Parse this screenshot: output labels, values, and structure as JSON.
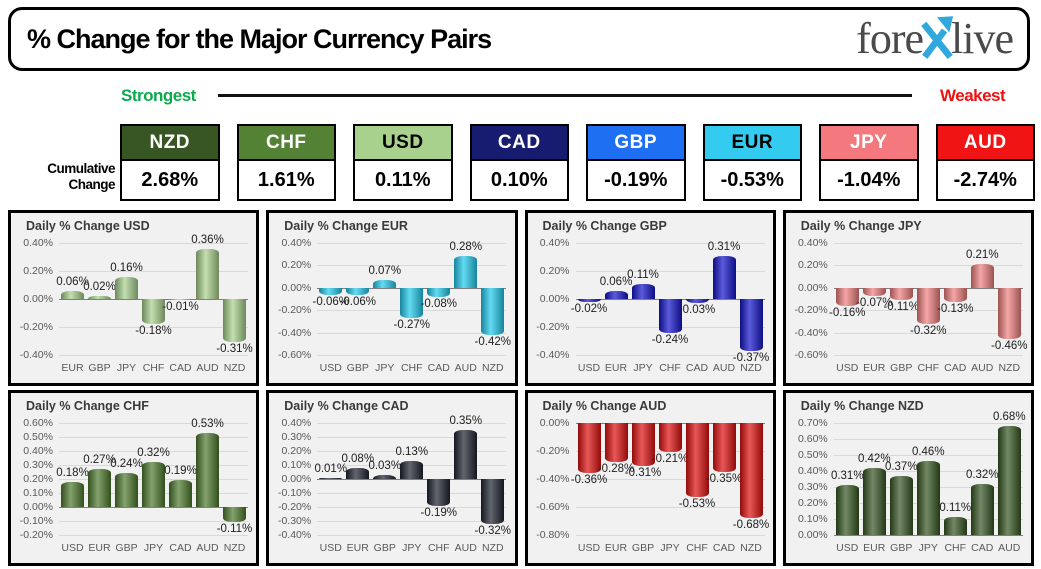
{
  "header": {
    "title": "% Change for the Major Currency Pairs",
    "logo": {
      "part1": "fore",
      "part2": "live",
      "x_color": "#2FA8DD",
      "text_color": "#4a4a4a"
    }
  },
  "scale": {
    "strongest_label": "Strongest",
    "weakest_label": "Weakest",
    "strongest_color": "#0CA94F",
    "weakest_color": "#EE1111"
  },
  "cumulative": {
    "label_line1": "Cumulative",
    "label_line2": "Change",
    "ranking": [
      {
        "currency": "NZD",
        "value": "2.68%",
        "bg": "#375623",
        "fg": "#FFFFFF"
      },
      {
        "currency": "CHF",
        "value": "1.61%",
        "bg": "#548235",
        "fg": "#FFFFFF"
      },
      {
        "currency": "USD",
        "value": "0.11%",
        "bg": "#A9D18E",
        "fg": "#000000"
      },
      {
        "currency": "CAD",
        "value": "0.10%",
        "bg": "#181C70",
        "fg": "#FFFFFF"
      },
      {
        "currency": "GBP",
        "value": "-0.19%",
        "bg": "#1F6FF2",
        "fg": "#FFFFFF"
      },
      {
        "currency": "EUR",
        "value": "-0.53%",
        "bg": "#33CCF0",
        "fg": "#000000"
      },
      {
        "currency": "JPY",
        "value": "-1.04%",
        "bg": "#F4797F",
        "fg": "#FFFFFF"
      },
      {
        "currency": "AUD",
        "value": "-2.74%",
        "bg": "#F01414",
        "fg": "#FFFFFF"
      }
    ]
  },
  "chart_data": [
    {
      "type": "bar",
      "title": "Daily % Change USD",
      "categories": [
        "EUR",
        "GBP",
        "JPY",
        "CHF",
        "CAD",
        "AUD",
        "NZD"
      ],
      "values": [
        0.06,
        0.02,
        0.16,
        -0.18,
        -0.01,
        0.36,
        -0.31
      ],
      "ylim": [
        -0.4,
        0.4
      ],
      "ystep": 0.2,
      "grid": true,
      "bar_color": "#A9D18E"
    },
    {
      "type": "bar",
      "title": "Daily % Change EUR",
      "categories": [
        "USD",
        "GBP",
        "JPY",
        "CHF",
        "CAD",
        "AUD",
        "NZD"
      ],
      "values": [
        -0.06,
        -0.06,
        0.07,
        -0.27,
        -0.08,
        0.28,
        -0.42
      ],
      "ylim": [
        -0.6,
        0.4
      ],
      "ystep": 0.2,
      "grid": true,
      "bar_color": "#22CCEE"
    },
    {
      "type": "bar",
      "title": "Daily % Change GBP",
      "categories": [
        "USD",
        "EUR",
        "JPY",
        "CHF",
        "CAD",
        "AUD",
        "NZD"
      ],
      "values": [
        -0.02,
        0.06,
        0.11,
        -0.24,
        -0.03,
        0.31,
        -0.37
      ],
      "ylim": [
        -0.4,
        0.4
      ],
      "ystep": 0.2,
      "grid": true,
      "bar_color": "#1414CC"
    },
    {
      "type": "bar",
      "title": "Daily % Change JPY",
      "categories": [
        "USD",
        "EUR",
        "GBP",
        "CHF",
        "CAD",
        "AUD",
        "NZD"
      ],
      "values": [
        -0.16,
        -0.07,
        -0.11,
        -0.32,
        -0.13,
        0.21,
        -0.46
      ],
      "ylim": [
        -0.6,
        0.4
      ],
      "ystep": 0.2,
      "grid": true,
      "bar_color": "#F08080"
    },
    {
      "type": "bar",
      "title": "Daily % Change CHF",
      "categories": [
        "USD",
        "EUR",
        "GBP",
        "JPY",
        "CAD",
        "AUD",
        "NZD"
      ],
      "values": [
        0.18,
        0.27,
        0.24,
        0.32,
        0.19,
        0.53,
        -0.11
      ],
      "ylim": [
        -0.2,
        0.6
      ],
      "ystep": 0.1,
      "grid": true,
      "bar_color": "#4E7A2E"
    },
    {
      "type": "bar",
      "title": "Daily % Change CAD",
      "categories": [
        "USD",
        "EUR",
        "GBP",
        "JPY",
        "CHF",
        "AUD",
        "NZD"
      ],
      "values": [
        0.01,
        0.08,
        0.03,
        0.13,
        -0.19,
        0.35,
        -0.32
      ],
      "ylim": [
        -0.4,
        0.4
      ],
      "ystep": 0.1,
      "grid": true,
      "bar_color": "#1F2430"
    },
    {
      "type": "bar",
      "title": "Daily % Change AUD",
      "categories": [
        "USD",
        "EUR",
        "GBP",
        "JPY",
        "CHF",
        "CAD",
        "NZD"
      ],
      "values": [
        -0.36,
        -0.28,
        -0.31,
        -0.21,
        -0.53,
        -0.35,
        -0.68
      ],
      "ylim": [
        -0.8,
        0.0
      ],
      "ystep": 0.2,
      "grid": true,
      "bar_color": "#E01010"
    },
    {
      "type": "bar",
      "title": "Daily % Change NZD",
      "categories": [
        "USD",
        "EUR",
        "GBP",
        "JPY",
        "CHF",
        "CAD",
        "AUD"
      ],
      "values": [
        0.31,
        0.42,
        0.37,
        0.46,
        0.11,
        0.32,
        0.68
      ],
      "ylim": [
        0.0,
        0.7
      ],
      "ystep": 0.1,
      "grid": true,
      "bar_color": "#375623"
    }
  ]
}
